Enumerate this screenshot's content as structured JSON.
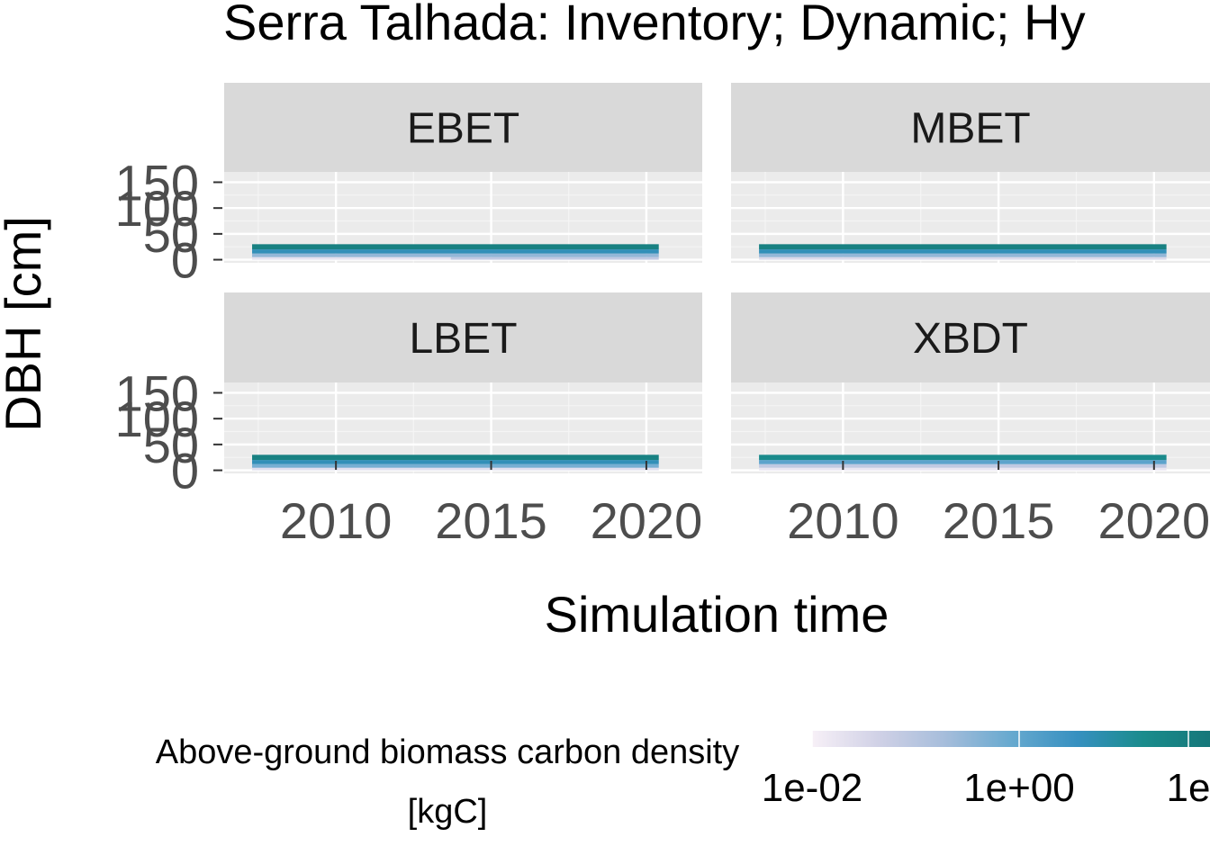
{
  "chart_data": {
    "type": "heatmap",
    "title": "Serra Talhada: Inventory; Dynamic; Hy",
    "xlabel": "Simulation time",
    "ylabel": "DBH [cm]",
    "x_ticks": [
      "2010",
      "2015",
      "2020"
    ],
    "x_range": [
      2006.4,
      2021.8
    ],
    "y_ticks": [
      "0",
      "50",
      "100",
      "150"
    ],
    "y_range": [
      -6,
      170
    ],
    "panels": [
      {
        "name": "EBET",
        "tiles": [
          {
            "x0": 2007.3,
            "x1": 2013.7,
            "y0": 0,
            "y1": 5,
            "value": 0.5
          },
          {
            "x0": 2013.7,
            "x1": 2020.4,
            "y0": 0,
            "y1": 5,
            "value": 1.5
          },
          {
            "x0": 2007.3,
            "x1": 2020.4,
            "y0": 5,
            "y1": 12,
            "value": 2.5
          },
          {
            "x0": 2007.3,
            "x1": 2020.4,
            "y0": 12,
            "y1": 20,
            "value": 4.5
          },
          {
            "x0": 2007.3,
            "x1": 2020.4,
            "y0": 20,
            "y1": 30,
            "value": 6
          }
        ]
      },
      {
        "name": "MBET",
        "tiles": [
          {
            "x0": 2007.3,
            "x1": 2020.4,
            "y0": 0,
            "y1": 5,
            "value": 0.8
          },
          {
            "x0": 2007.3,
            "x1": 2020.4,
            "y0": 5,
            "y1": 12,
            "value": 2.5
          },
          {
            "x0": 2007.3,
            "x1": 2020.4,
            "y0": 12,
            "y1": 20,
            "value": 4.5
          },
          {
            "x0": 2007.3,
            "x1": 2020.4,
            "y0": 20,
            "y1": 30,
            "value": 6
          }
        ]
      },
      {
        "name": "LBET",
        "tiles": [
          {
            "x0": 2007.3,
            "x1": 2020.4,
            "y0": 0,
            "y1": 5,
            "value": 0.6
          },
          {
            "x0": 2007.3,
            "x1": 2020.4,
            "y0": 5,
            "y1": 12,
            "value": 3
          },
          {
            "x0": 2007.3,
            "x1": 2020.4,
            "y0": 12,
            "y1": 20,
            "value": 4.5
          },
          {
            "x0": 2007.3,
            "x1": 2020.4,
            "y0": 20,
            "y1": 30,
            "value": 6
          }
        ]
      },
      {
        "name": "XBDT",
        "tiles": [
          {
            "x0": 2007.3,
            "x1": 2020.4,
            "y0": 0,
            "y1": 5,
            "value": 0.4
          },
          {
            "x0": 2007.3,
            "x1": 2020.4,
            "y0": 5,
            "y1": 12,
            "value": 1.5
          },
          {
            "x0": 2007.3,
            "x1": 2020.4,
            "y0": 12,
            "y1": 20,
            "value": 3.5
          },
          {
            "x0": 2007.3,
            "x1": 2020.4,
            "y0": 20,
            "y1": 30,
            "value": 5.5
          }
        ]
      }
    ],
    "legend": {
      "title_line1": "Above-ground biomass carbon density",
      "title_line2": "[kgC]",
      "ticks": [
        "1e-02",
        "1e+00",
        "1e"
      ],
      "scale": "log",
      "placement": "bottom",
      "colors": [
        "#f7f0f7",
        "#d0d1e6",
        "#a6bddb",
        "#67a9cf",
        "#3690c0",
        "#1a8c8c",
        "#16777a"
      ]
    },
    "grid": true,
    "panel_background": "#ebebeb",
    "strip_background": "#d9d9d9"
  }
}
